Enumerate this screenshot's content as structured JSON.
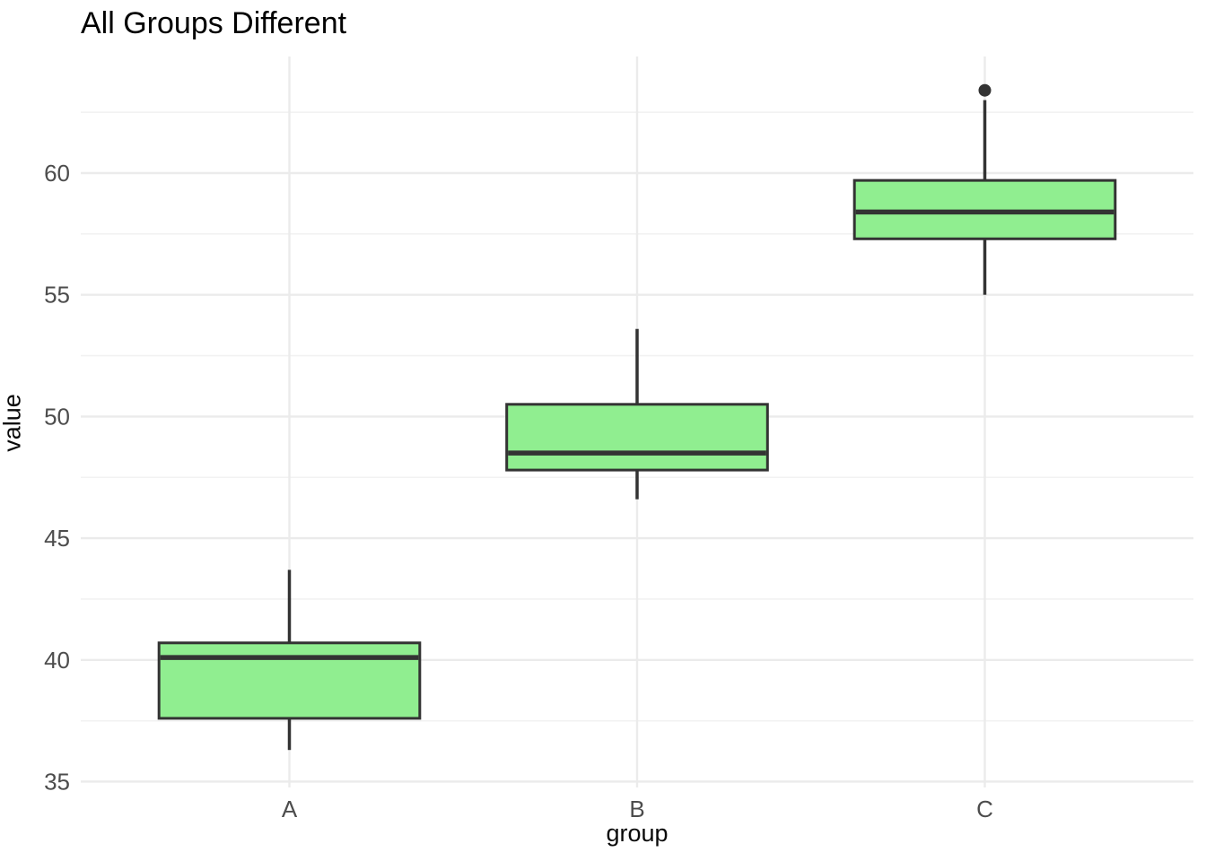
{
  "chart_data": {
    "type": "boxplot",
    "title": "All Groups Different",
    "xlabel": "group",
    "ylabel": "value",
    "categories": [
      "A",
      "B",
      "C"
    ],
    "y_axis": {
      "ticks": [
        35,
        40,
        45,
        50,
        55,
        60
      ],
      "minor_ticks": [
        37.5,
        42.5,
        47.5,
        52.5,
        57.5,
        62.5
      ],
      "range": [
        34.76,
        64.79
      ]
    },
    "x_axis": {
      "positions": [
        1,
        2,
        3
      ],
      "range": [
        0.4,
        3.6
      ]
    },
    "box_width": 0.75,
    "grid": true,
    "legend": "none",
    "series": [
      {
        "group": "A",
        "whisker_low": 36.3,
        "q1": 37.6,
        "median": 40.1,
        "q3": 40.7,
        "whisker_high": 43.7,
        "outliers": []
      },
      {
        "group": "B",
        "whisker_low": 46.6,
        "q1": 47.8,
        "median": 48.5,
        "q3": 50.5,
        "whisker_high": 53.6,
        "outliers": []
      },
      {
        "group": "C",
        "whisker_low": 55.0,
        "q1": 57.3,
        "median": 58.4,
        "q3": 59.7,
        "whisker_high": 63.0,
        "outliers": [
          63.4
        ]
      }
    ],
    "style": {
      "box_fill": "#90EE90",
      "box_stroke": "#333333",
      "median_stroke": "#333333",
      "whisker_stroke": "#333333",
      "outlier_fill": "#333333",
      "grid_major": "#EBEBEB",
      "grid_minor": "#F2F2F2",
      "tick_label_color": "#4D4D4D",
      "axis_title_color": "#0A0A0A",
      "title_color": "#000000",
      "background": "#FFFFFF"
    }
  }
}
